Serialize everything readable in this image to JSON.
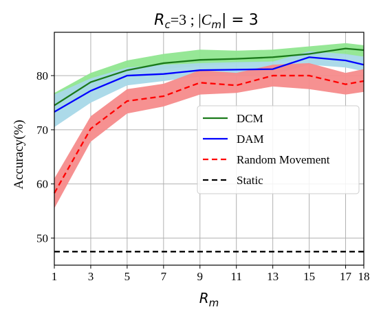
{
  "chart_data": {
    "type": "line",
    "title": "R_c=3 ; |C_m| = 3",
    "title_parts": {
      "rc_sym": "R",
      "rc_sub": "c",
      "rc_rest": "=3 ; |",
      "cm_sym": "C",
      "cm_sub": "m",
      "cm_rest": "| = 3"
    },
    "xlabel": "R",
    "xlabel_sub": "m",
    "ylabel": "Accuracy(%)",
    "xlim": [
      1,
      18
    ],
    "ylim": [
      45,
      88
    ],
    "xticks": [
      1,
      3,
      5,
      7,
      9,
      11,
      13,
      15,
      17,
      18
    ],
    "yticks": [
      50,
      60,
      70,
      80
    ],
    "grid": true,
    "legend_position": "center-right",
    "series": [
      {
        "name": "DCM",
        "color": "#1a7a1a",
        "band_color": "#90e690",
        "style": "solid",
        "x": [
          1,
          3,
          5,
          7,
          9,
          11,
          13,
          15,
          17,
          18
        ],
        "y": [
          74.5,
          78.8,
          81.0,
          82.3,
          82.9,
          83.1,
          83.4,
          84.0,
          85.0,
          84.7
        ],
        "lower": [
          73.0,
          77.5,
          80.0,
          81.2,
          81.8,
          82.2,
          82.6,
          83.0,
          83.8,
          83.5
        ],
        "upper": [
          76.8,
          80.5,
          82.8,
          84.0,
          84.8,
          84.6,
          84.8,
          85.4,
          86.0,
          85.6
        ]
      },
      {
        "name": "DAM",
        "color": "#0000ff",
        "band_color": "#a8d8e8",
        "style": "solid",
        "x": [
          1,
          3,
          5,
          7,
          9,
          11,
          13,
          15,
          17,
          18
        ],
        "y": [
          73.3,
          77.2,
          80.0,
          80.3,
          81.0,
          81.1,
          81.2,
          83.4,
          82.8,
          82.0
        ],
        "lower": [
          70.5,
          75.0,
          78.2,
          79.0,
          79.8,
          80.0,
          80.2,
          82.0,
          81.5,
          80.8
        ],
        "upper": [
          76.5,
          79.5,
          81.5,
          82.0,
          82.3,
          82.5,
          82.6,
          84.5,
          84.0,
          83.5
        ]
      },
      {
        "name": "Random Movement",
        "color": "#ff0000",
        "band_color": "#f58b8b",
        "style": "dashed",
        "x": [
          1,
          3,
          5,
          7,
          9,
          11,
          13,
          15,
          17,
          18
        ],
        "y": [
          58.3,
          70.2,
          75.3,
          76.2,
          78.7,
          78.2,
          80.0,
          80.0,
          78.4,
          79.0
        ],
        "lower": [
          55.5,
          67.8,
          73.0,
          74.3,
          76.5,
          76.8,
          78.0,
          77.5,
          76.5,
          77.0
        ],
        "upper": [
          61.0,
          72.5,
          77.5,
          78.5,
          81.0,
          80.5,
          82.0,
          82.3,
          80.5,
          81.2
        ]
      },
      {
        "name": "Static",
        "color": "#000000",
        "style": "dashed",
        "x": [
          1,
          18
        ],
        "y": [
          47.5,
          47.5
        ]
      }
    ]
  }
}
